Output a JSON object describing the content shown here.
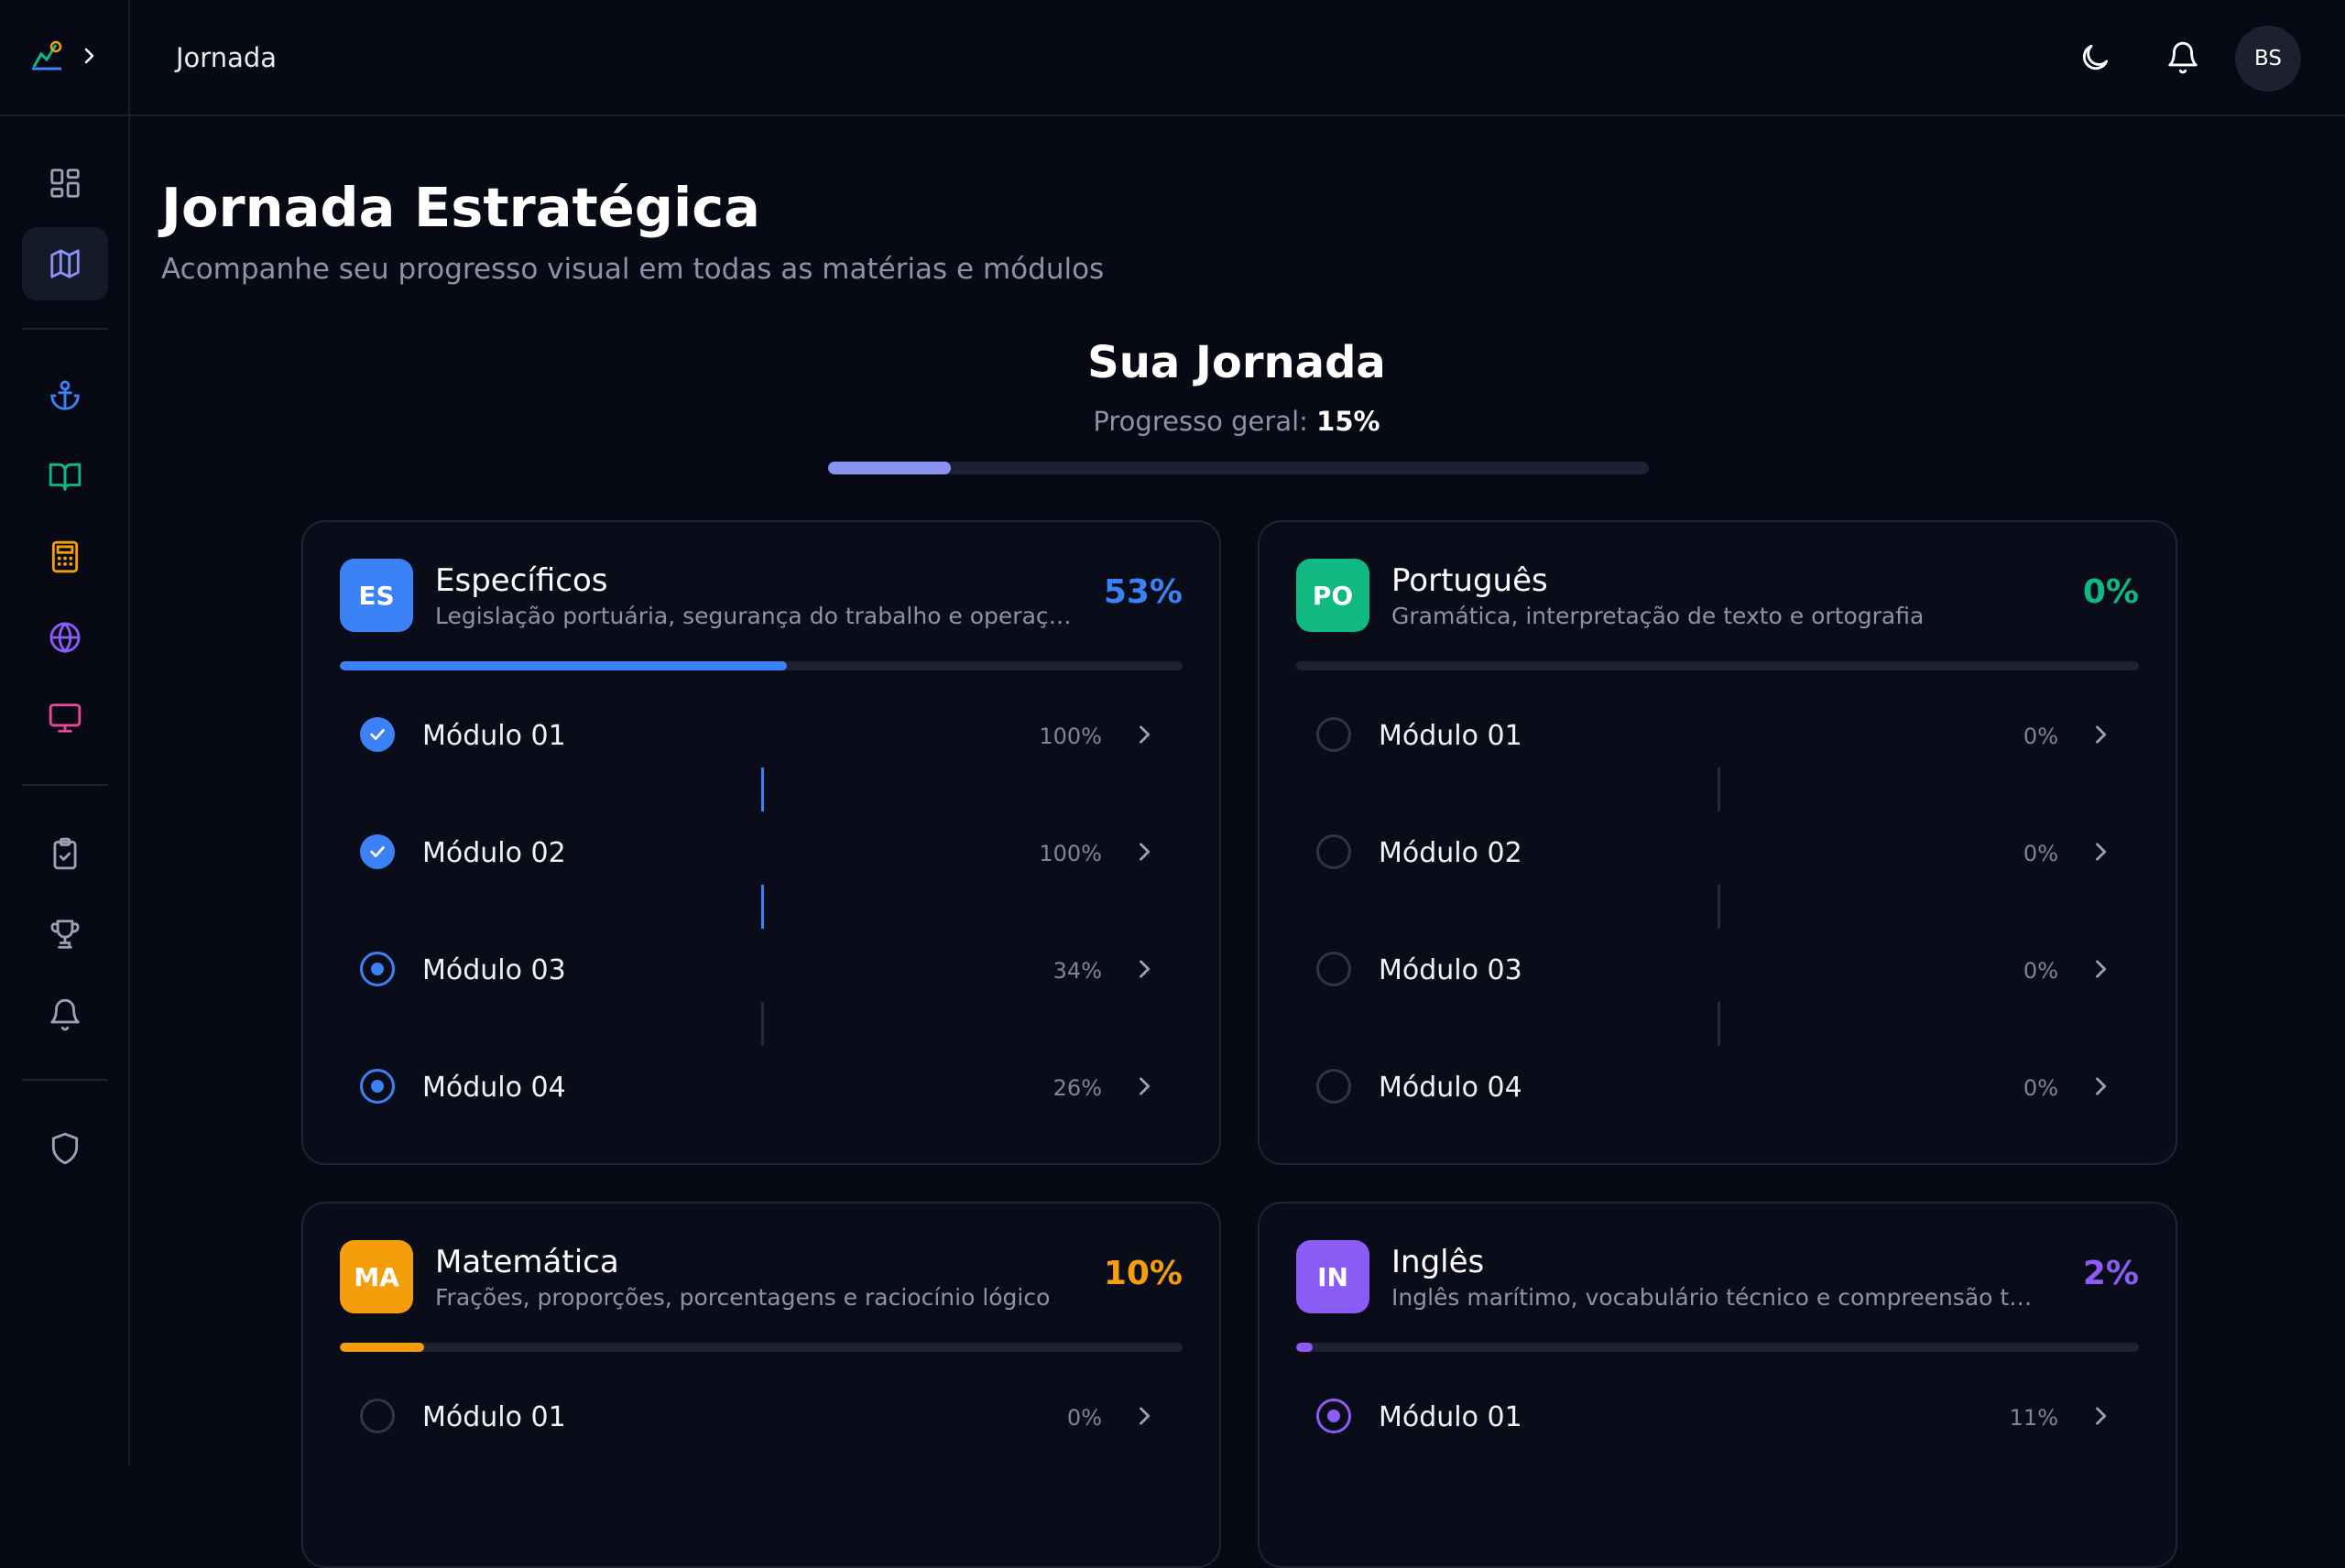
{
  "header": {
    "title": "Jornada",
    "avatar_initials": "BS"
  },
  "page": {
    "title": "Jornada Estratégica",
    "subtitle": "Acompanhe seu progresso visual em todas as matérias e módulos"
  },
  "journey": {
    "title": "Sua Jornada",
    "progress_label": "Progresso geral:",
    "progress_value": "15%",
    "progress_fraction": 0.15
  },
  "sidebar": {
    "icons": [
      "dashboard-icon",
      "map-icon",
      "anchor-icon",
      "book-open-icon",
      "calculator-icon",
      "globe-icon",
      "monitor-icon",
      "clipboard-check-icon",
      "trophy-icon",
      "bell-icon",
      "shield-icon"
    ]
  },
  "colors": {
    "blue": "#3b82f6",
    "green": "#10b981",
    "orange": "#f59e0b",
    "purple": "#8b5cf6",
    "overall": "#8a93ee"
  },
  "subjects": [
    {
      "badge": "ES",
      "title": "Específicos",
      "description": "Legislação portuária, segurança do trabalho e operações marítimas",
      "percent": "53%",
      "progress": 0.53,
      "color": "#3b82f6",
      "modules": [
        {
          "name": "Módulo 01",
          "percent": "100%",
          "status": "done"
        },
        {
          "name": "Módulo 02",
          "percent": "100%",
          "status": "done"
        },
        {
          "name": "Módulo 03",
          "percent": "34%",
          "status": "progress"
        },
        {
          "name": "Módulo 04",
          "percent": "26%",
          "status": "progress"
        }
      ]
    },
    {
      "badge": "PO",
      "title": "Português",
      "description": "Gramática, interpretação de texto e ortografia",
      "percent": "0%",
      "progress": 0,
      "color": "#10b981",
      "modules": [
        {
          "name": "Módulo 01",
          "percent": "0%",
          "status": "none"
        },
        {
          "name": "Módulo 02",
          "percent": "0%",
          "status": "none"
        },
        {
          "name": "Módulo 03",
          "percent": "0%",
          "status": "none"
        },
        {
          "name": "Módulo 04",
          "percent": "0%",
          "status": "none"
        }
      ]
    },
    {
      "badge": "MA",
      "title": "Matemática",
      "description": "Frações, proporções, porcentagens e raciocínio lógico",
      "percent": "10%",
      "progress": 0.1,
      "color": "#f59e0b",
      "modules": [
        {
          "name": "Módulo 01",
          "percent": "0%",
          "status": "none"
        }
      ]
    },
    {
      "badge": "IN",
      "title": "Inglês",
      "description": "Inglês marítimo, vocabulário técnico e compreensão textual",
      "percent": "2%",
      "progress": 0.02,
      "color": "#8b5cf6",
      "modules": [
        {
          "name": "Módulo 01",
          "percent": "11%",
          "status": "progress"
        }
      ]
    }
  ]
}
